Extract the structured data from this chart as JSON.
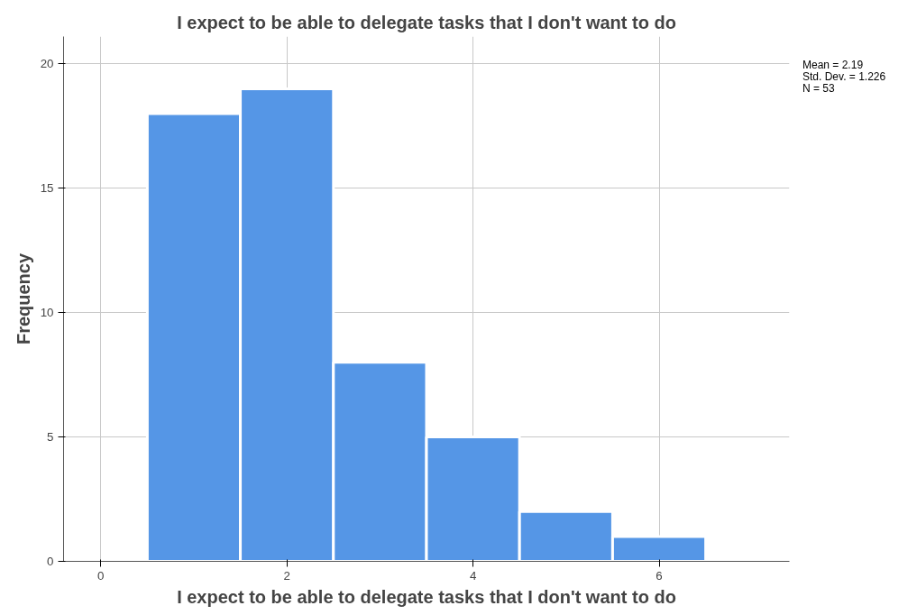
{
  "chart_data": {
    "type": "histogram",
    "title": "I expect to be able to delegate tasks that I don't want to do",
    "xlabel": "I expect to be able to delegate tasks that I don't want to do",
    "ylabel": "Frequency",
    "bins": [
      0.5,
      1.5,
      2.5,
      3.5,
      4.5,
      5.5,
      6.5
    ],
    "values": [
      18,
      19,
      8,
      5,
      2,
      1
    ],
    "color": "#5596e6",
    "xlim": [
      -0.4,
      7.4
    ],
    "xticks": [
      0,
      2,
      4,
      6
    ],
    "ylim": [
      0,
      21.1
    ],
    "yticks": [
      0,
      5,
      10,
      15,
      20
    ],
    "grid": true,
    "annotations": [
      "Mean = 2.19",
      "Std. Dev. = 1.226",
      "N = 53"
    ]
  }
}
